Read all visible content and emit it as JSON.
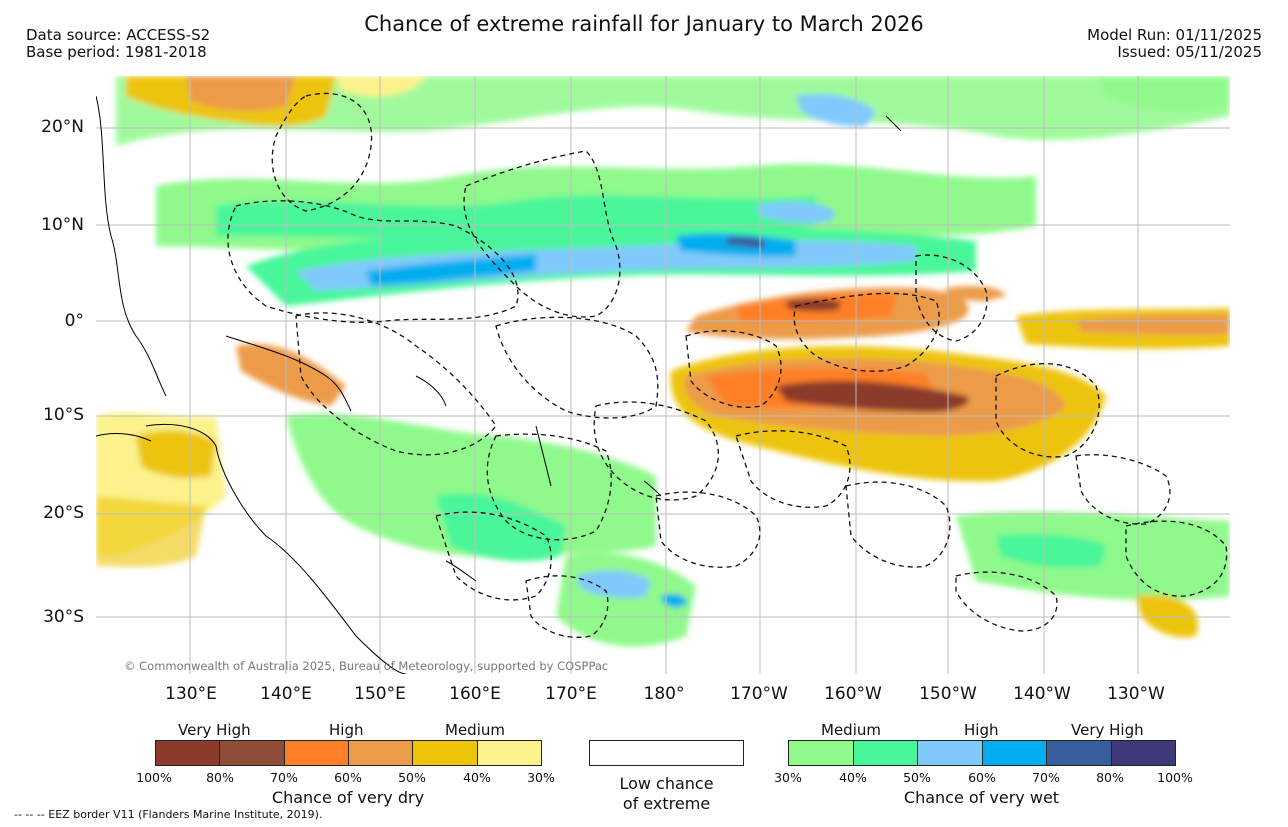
{
  "header": {
    "title": "Chance of extreme rainfall for January to March 2026",
    "data_source": "Data source: ACCESS-S2",
    "base_period": "Base period: 1981-2018",
    "model_run": "Model Run: 01/11/2025",
    "issued": "Issued: 05/11/2025"
  },
  "axes": {
    "lat_labels": [
      "20°N",
      "10°N",
      "0°",
      "10°S",
      "20°S",
      "30°S"
    ],
    "lon_labels": [
      "130°E",
      "140°E",
      "150°E",
      "160°E",
      "170°E",
      "180°",
      "170°W",
      "160°W",
      "150°W",
      "140°W",
      "130°W"
    ]
  },
  "copyright": "© Commonwealth of Australia 2025, Bureau of Meteorology, supported by COSPPac",
  "legend": {
    "dry": {
      "headers": [
        "Very High",
        "High",
        "Medium"
      ],
      "colors": [
        "#8b3a2c",
        "#8e4c36",
        "#ff7f27",
        "#ec9b48",
        "#edc40a",
        "#fbf28b"
      ],
      "ticks": [
        "100%",
        "80%",
        "70%",
        "60%",
        "50%",
        "40%",
        "30%"
      ],
      "caption": "Chance of very dry"
    },
    "low": {
      "caption_line1": "Low chance",
      "caption_line2": "of extreme",
      "color": "#ffffff"
    },
    "wet": {
      "headers": [
        "Medium",
        "High",
        "Very High"
      ],
      "colors": [
        "#8ff98b",
        "#48f69a",
        "#80c9fb",
        "#00aeef",
        "#385e9b",
        "#3e3a7a"
      ],
      "ticks": [
        "30%",
        "40%",
        "50%",
        "60%",
        "70%",
        "80%",
        "100%"
      ],
      "caption": "Chance of very wet"
    }
  },
  "footer": {
    "eez_note": "-- -- -- EEZ border V11 (Flanders Marine Institute, 2019)."
  }
}
